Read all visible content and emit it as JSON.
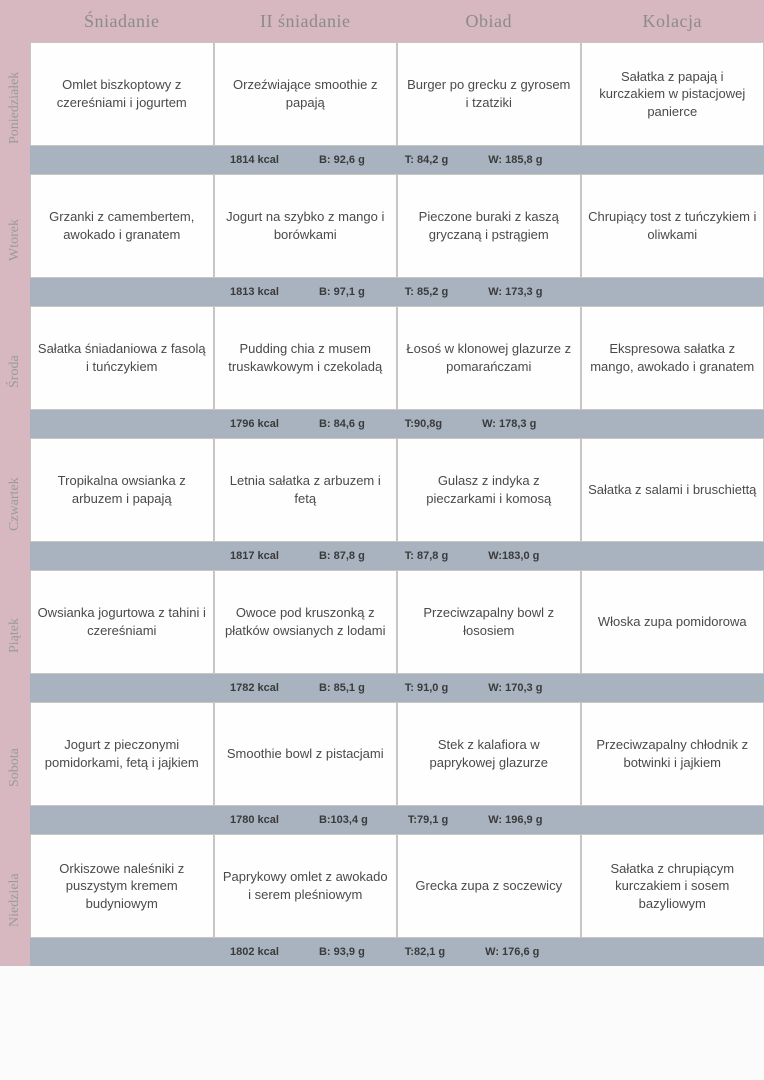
{
  "colors": {
    "pink_bar": "#d7b8c1",
    "blue_bar": "#a9b3c0",
    "bg": "#e8e6e3",
    "cell_border": "#c8c6c3",
    "header_text": "#8b8b8b",
    "day_text": "#9a9a9a",
    "cell_text": "#4a4a4a",
    "nutrition_text": "#3a3a3a"
  },
  "headers": {
    "sniadanie": "Śniadanie",
    "sniadanie2": "II śniadanie",
    "obiad": "Obiad",
    "kolacja": "Kolacja"
  },
  "days": [
    {
      "name": "Poniedziałek",
      "meals": {
        "sniadanie": "Omlet biszkoptowy z czereśniami i jogurtem",
        "sniadanie2": "Orzeźwiające smoothie z papają",
        "obiad": "Burger po grecku z gyrosem i tzatziki",
        "kolacja": "Sałatka z papają i kurczakiem w pistacjowej panierce"
      },
      "nutrition": {
        "kcal": "1814  kcal",
        "b": "B: 92,6 g",
        "t": "T: 84,2 g",
        "w": "W: 185,8 g"
      }
    },
    {
      "name": "Wtorek",
      "meals": {
        "sniadanie": "Grzanki z camembertem, awokado i granatem",
        "sniadanie2": "Jogurt na szybko z mango i borówkami",
        "obiad": "Pieczone buraki z kaszą gryczaną i pstrągiem",
        "kolacja": "Chrupiący tost z tuńczykiem i oliwkami"
      },
      "nutrition": {
        "kcal": "1813  kcal",
        "b": "B: 97,1 g",
        "t": "T: 85,2 g",
        "w": "W: 173,3 g"
      }
    },
    {
      "name": "Środa",
      "meals": {
        "sniadanie": "Sałatka śniadaniowa z fasolą i tuńczykiem",
        "sniadanie2": "Pudding chia z musem truskawkowym i czekoladą",
        "obiad": "Łosoś w klonowej glazurze z pomarańczami",
        "kolacja": "Ekspresowa sałatka z mango, awokado i granatem"
      },
      "nutrition": {
        "kcal": "1796  kcal",
        "b": "B: 84,6 g",
        "t": "T:90,8g",
        "w": "W: 178,3 g"
      }
    },
    {
      "name": "Czwartek",
      "meals": {
        "sniadanie": "Tropikalna owsianka z arbuzem i papają",
        "sniadanie2": "Letnia sałatka z arbuzem i fetą",
        "obiad": "Gulasz z indyka z pieczarkami i komosą",
        "kolacja": "Sałatka z salami i bruschiettą"
      },
      "nutrition": {
        "kcal": "1817  kcal",
        "b": "B: 87,8 g",
        "t": "T: 87,8 g",
        "w": "W:183,0  g"
      }
    },
    {
      "name": "Piątek",
      "meals": {
        "sniadanie": "Owsianka jogurtowa z tahini i czereśniami",
        "sniadanie2": "Owoce pod kruszonką z płatków owsianych z lodami",
        "obiad": "Przeciwzapalny bowl z łososiem",
        "kolacja": "Włoska zupa pomidorowa"
      },
      "nutrition": {
        "kcal": "1782  kcal",
        "b": "B: 85,1 g",
        "t": "T: 91,0 g",
        "w": "W: 170,3 g"
      }
    },
    {
      "name": "Sobota",
      "meals": {
        "sniadanie": "Jogurt z pieczonymi pomidorkami, fetą i jajkiem",
        "sniadanie2": "Smoothie bowl z pistacjami",
        "obiad": "Stek z kalafiora w paprykowej glazurze",
        "kolacja": "Przeciwzapalny chłodnik z botwinki i jajkiem"
      },
      "nutrition": {
        "kcal": "1780  kcal",
        "b": "B:103,4 g",
        "t": "T:79,1 g",
        "w": "W: 196,9 g"
      }
    },
    {
      "name": "Niedziela",
      "meals": {
        "sniadanie": "Orkiszowe naleśniki z puszystym kremem budyniowym",
        "sniadanie2": "Paprykowy omlet z awokado i serem pleśniowym",
        "obiad": "Grecka zupa z soczewicy",
        "kolacja": "Sałatka z chrupiącym kurczakiem i sosem bazyliowym"
      },
      "nutrition": {
        "kcal": "1802 kcal",
        "b": "B: 93,9 g",
        "t": "T:82,1 g",
        "w": "W: 176,6 g"
      }
    }
  ]
}
